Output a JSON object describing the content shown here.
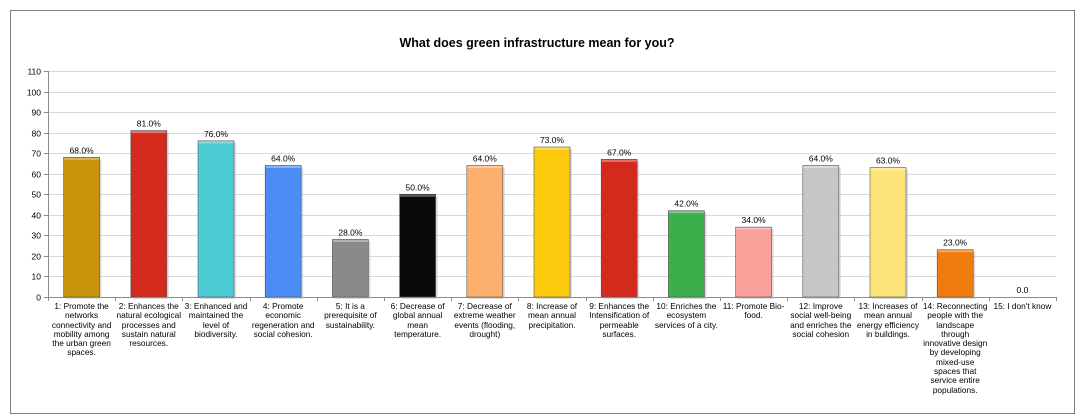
{
  "chart_data": {
    "type": "bar",
    "title": "What does green infrastructure mean for you?",
    "xlabel": "",
    "ylabel": "",
    "ylim": [
      0,
      110
    ],
    "yticks": [
      0,
      10,
      20,
      30,
      40,
      50,
      60,
      70,
      80,
      90,
      100,
      110
    ],
    "grid": true,
    "legend": "none",
    "categories": [
      "1: Promote the networks connectivity and mobility among the urban green spaces.",
      "2: Enhances the natural ecological processes and sustain natural resources.",
      "3: Enhanced and maintained the level of biodiversity.",
      "4: Promote economic regeneration and social cohesion.",
      "5: It is a prerequisite of sustainability.",
      "6: Decrease of global annual mean temperature.",
      "7: Decrease of extreme weather events (flooding, drought)",
      "8: Increase of mean annual precipitation.",
      "9: Enhances the Intensification of permeable surfaces.",
      "10: Enriches the ecosystem services of a city.",
      "11: Promote Bio-food.",
      "12: Improve social well-being and enriches the social cohesion",
      "13: Increases of mean annual energy efficiency in buildings.",
      "14: Reconnecting people with the landscape through innovative design by developing mixed-use spaces that service entire populations.",
      "15: I don't know"
    ],
    "values": [
      68,
      81,
      76,
      64,
      28,
      50,
      64,
      73,
      67,
      42,
      34,
      64,
      63,
      23,
      0
    ],
    "data_labels": [
      "68.0%",
      "81.0%",
      "76.0%",
      "64.0%",
      "28.0%",
      "50.0%",
      "64.0%",
      "73.0%",
      "67.0%",
      "42.0%",
      "34.0%",
      "64.0%",
      "63.0%",
      "23.0%",
      "0.0"
    ],
    "colors": [
      "#c8940a",
      "#d42a1e",
      "#4ecbd4",
      "#4a8cf4",
      "#8a8a8a",
      "#0a0a0a",
      "#fbb06e",
      "#fcc90c",
      "#d42a1e",
      "#3cae4c",
      "#f9a09a",
      "#c6c6c6",
      "#fde47a",
      "#f07b0e",
      "#ffffff"
    ]
  }
}
